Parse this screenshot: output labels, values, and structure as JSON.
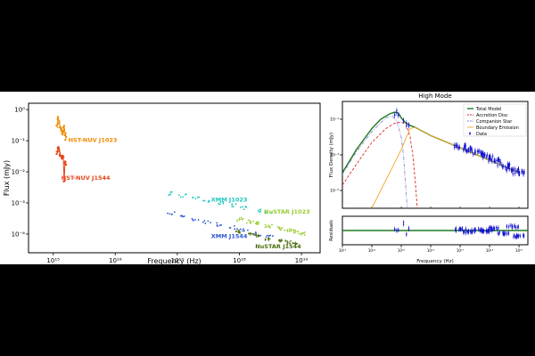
{
  "colors": {
    "hst_j1023": "#f08a00",
    "hst_j1544": "#e8441a",
    "xmm_j1023": "#18c6c0",
    "xmm_j1544": "#2a55d6",
    "nustar_j1023": "#9acd32",
    "nustar_j1544": "#4a6d10",
    "total_model": "#1f7a1f",
    "accretion_disc": "#e32626",
    "companion_star": "#8a8ad8",
    "boundary_emission": "#f5a623",
    "data": "#1010d0"
  },
  "chart_data": [
    {
      "type": "scatter",
      "xlabel": "Frequency (Hz)",
      "ylabel": "Flux (mJy)",
      "xscale": "log",
      "yscale": "log",
      "xlim": [
        400000000000000.0,
        2e+19
      ],
      "ylim": [
        2.5e-05,
        1.6
      ],
      "xticks": [
        {
          "value": 1000000000000000.0,
          "label": "10¹⁵"
        },
        {
          "value": 1e+16,
          "label": "10¹⁶"
        },
        {
          "value": 1e+17,
          "label": "10¹⁷"
        },
        {
          "value": 1e+18,
          "label": "10¹⁸"
        },
        {
          "value": 1e+19,
          "label": "10¹⁹"
        }
      ],
      "yticks": [
        {
          "value": 1,
          "label": "10⁰"
        },
        {
          "value": 0.1,
          "label": "10⁻¹"
        },
        {
          "value": 0.01,
          "label": "10⁻²"
        },
        {
          "value": 0.001,
          "label": "10⁻³"
        },
        {
          "value": 0.0001,
          "label": "10⁻⁴"
        }
      ],
      "series": [
        {
          "name": "HST-NUV J1023",
          "color_key": "hst_j1023",
          "x": [
            1150000000000000.0,
            1200000000000000.0,
            1250000000000000.0,
            1300000000000000.0,
            1350000000000000.0,
            1400000000000000.0,
            1450000000000000.0,
            1500000000000000.0,
            1550000000000000.0,
            1600000000000000.0
          ],
          "y": [
            0.3,
            0.55,
            0.4,
            0.25,
            0.22,
            0.18,
            0.2,
            0.3,
            0.16,
            0.12
          ]
        },
        {
          "name": "HST-NUV J1544",
          "color_key": "hst_j1544",
          "x": [
            1150000000000000.0,
            1200000000000000.0,
            1250000000000000.0,
            1300000000000000.0,
            1350000000000000.0,
            1400000000000000.0,
            1450000000000000.0,
            1500000000000000.0,
            1550000000000000.0,
            1600000000000000.0
          ],
          "y": [
            0.04,
            0.06,
            0.05,
            0.035,
            0.03,
            0.028,
            0.032,
            0.005,
            0.02,
            0.018
          ]
        },
        {
          "name": "XMM J1023",
          "color_key": "xmm_j1023",
          "x": [
            8e+16,
            1.2e+17,
            2e+17,
            3e+17,
            5e+17,
            8e+17,
            1.2e+18,
            2e+18,
            3e+18
          ],
          "y": [
            0.002,
            0.0017,
            0.0014,
            0.0012,
            0.001,
            0.00085,
            0.0007,
            0.00055,
            0.00045
          ]
        },
        {
          "name": "XMM J1544",
          "color_key": "xmm_j1544",
          "x": [
            8e+16,
            1.2e+17,
            2e+17,
            3e+17,
            5e+17,
            8e+17,
            1.2e+18,
            2e+18,
            3e+18
          ],
          "y": [
            0.00045,
            0.00037,
            0.0003,
            0.00025,
            0.0002,
            0.00016,
            0.00013,
            0.0001,
            8e-05
          ]
        },
        {
          "name": "NuSTAR J1023",
          "color_key": "nustar_j1023",
          "x": [
            1e+18,
            1.5e+18,
            2e+18,
            3e+18,
            4.5e+18,
            6e+18,
            8e+18,
            1e+19
          ],
          "y": [
            0.0003,
            0.00025,
            0.00022,
            0.00018,
            0.00015,
            0.00013,
            0.00012,
            0.0001
          ]
        },
        {
          "name": "NuSTAR J1544",
          "color_key": "nustar_j1544",
          "x": [
            1e+18,
            1.5e+18,
            2e+18,
            3e+18,
            4.5e+18,
            6e+18,
            8e+18
          ],
          "y": [
            0.00012,
            0.0001,
            9e-05,
            7e-05,
            6e-05,
            5.5e-05,
            5e-05
          ]
        }
      ],
      "annotations": [
        {
          "text": "HST-NUV J1023",
          "x": 1750000000000000.0,
          "y": 0.09,
          "color_key": "hst_j1023"
        },
        {
          "text": "HST-NUV J1544",
          "x": 1350000000000000.0,
          "y": 0.0055,
          "color_key": "hst_j1544"
        },
        {
          "text": "XMM J1023",
          "x": 3.5e+17,
          "y": 0.0011,
          "color_key": "xmm_j1023"
        },
        {
          "text": "NuSTAR J1023",
          "x": 2.5e+18,
          "y": 0.00045,
          "color_key": "nustar_j1023"
        },
        {
          "text": "XMM J1544",
          "x": 3.5e+17,
          "y": 7.5e-05,
          "color_key": "xmm_j1544"
        },
        {
          "text": "NuSTAR J1544",
          "x": 1.8e+18,
          "y": 3.5e-05,
          "color_key": "nustar_j1544"
        }
      ]
    },
    {
      "type": "line",
      "title": "High Mode",
      "ylabel": "Flux Density (mJy)",
      "xscale": "log",
      "yscale": "log",
      "xlim": [
        10000000000000.0,
        2e+19
      ],
      "ylim": [
        1e-06,
        1
      ],
      "xticks": [
        {
          "value": 10000000000000.0,
          "label": "10¹³"
        },
        {
          "value": 100000000000000.0,
          "label": "10¹⁴"
        },
        {
          "value": 1000000000000000.0,
          "label": "10¹⁵"
        },
        {
          "value": 1e+16,
          "label": "10¹⁶"
        },
        {
          "value": 1e+17,
          "label": "10¹⁷"
        },
        {
          "value": 1e+18,
          "label": "10¹⁸"
        },
        {
          "value": 1e+19,
          "label": "10¹⁹"
        }
      ],
      "yticks": [
        {
          "value": 0.1,
          "label": "10⁻¹"
        },
        {
          "value": 0.001,
          "label": "10⁻³"
        },
        {
          "value": 1e-05,
          "label": "10⁻⁵"
        }
      ],
      "legend_position": "top-right",
      "series": [
        {
          "name": "Total Model",
          "color_key": "total_model",
          "style": "solid",
          "x": [
            10000000000000.0,
            30000000000000.0,
            100000000000000.0,
            200000000000000.0,
            400000000000000.0,
            600000000000000.0,
            800000000000000.0,
            1000000000000000.0,
            1300000000000000.0,
            2000000000000000.0,
            3000000000000000.0,
            1e+16,
            1e+17,
            1e+18,
            1e+19
          ],
          "y": [
            0.0001,
            0.002,
            0.03,
            0.1,
            0.2,
            0.25,
            0.22,
            0.12,
            0.07,
            0.045,
            0.035,
            0.012,
            0.0025,
            0.0005,
            0.0001
          ]
        },
        {
          "name": "Accretion Disc",
          "color_key": "accretion_disc",
          "style": "dashed",
          "x": [
            10000000000000.0,
            30000000000000.0,
            100000000000000.0,
            300000000000000.0,
            600000000000000.0,
            1000000000000000.0,
            1500000000000000.0,
            2000000000000000.0,
            2500000000000000.0,
            3000000000000000.0,
            3500000000000000.0
          ],
          "y": [
            2e-05,
            0.0003,
            0.005,
            0.03,
            0.06,
            0.07,
            0.05,
            0.01,
            0.0008,
            3e-05,
            1e-06
          ]
        },
        {
          "name": "Companion Star",
          "color_key": "companion_star",
          "style": "dashdot",
          "x": [
            10000000000000.0,
            30000000000000.0,
            100000000000000.0,
            300000000000000.0,
            500000000000000.0,
            700000000000000.0,
            1000000000000000.0,
            1200000000000000.0,
            1400000000000000.0,
            1600000000000000.0
          ],
          "y": [
            8e-05,
            0.0015,
            0.02,
            0.12,
            0.15,
            0.08,
            0.01,
            0.0008,
            2e-05,
            1e-06
          ]
        },
        {
          "name": "Boundary Emission",
          "color_key": "boundary_emission",
          "style": "solid",
          "x": [
            100000000000000.0,
            200000000000000.0,
            500000000000000.0,
            1000000000000000.0,
            1500000000000000.0,
            2000000000000000.0,
            3000000000000000.0,
            1e+16,
            1e+17,
            1e+18,
            1e+19
          ],
          "y": [
            1e-06,
            1e-05,
            0.0002,
            0.002,
            0.01,
            0.03,
            0.035,
            0.012,
            0.0025,
            0.0005,
            0.0001
          ]
        },
        {
          "name": "Data",
          "color_key": "data",
          "style": "points",
          "x": [
            600000000000000.0,
            700000000000000.0,
            800000000000000.0,
            1200000000000000.0,
            1500000000000000.0,
            1800000000000000.0,
            1e+17,
            2e+17,
            4e+17,
            8e+17,
            1.5e+18,
            3e+18,
            6e+18,
            1e+19
          ],
          "y": [
            0.2,
            0.28,
            0.2,
            0.08,
            0.05,
            0.04,
            0.003,
            0.002,
            0.0013,
            0.0008,
            0.0005,
            0.00025,
            0.00015,
            0.0001
          ]
        }
      ]
    },
    {
      "type": "scatter",
      "xlabel": "Frequency (Hz)",
      "ylabel": "Residuals",
      "xscale": "log",
      "xlim": [
        10000000000000.0,
        2e+19
      ],
      "ylim": [
        -3,
        3
      ],
      "xticks": [
        {
          "value": 10000000000000.0,
          "label": "10¹³"
        },
        {
          "value": 100000000000000.0,
          "label": "10¹⁴"
        },
        {
          "value": 1000000000000000.0,
          "label": "10¹⁵"
        },
        {
          "value": 1e+16,
          "label": "10¹⁶"
        },
        {
          "value": 1e+17,
          "label": "10¹⁷"
        },
        {
          "value": 1e+18,
          "label": "10¹⁸"
        },
        {
          "value": 1e+19,
          "label": "10¹⁹"
        }
      ],
      "reference_line": 0,
      "points": {
        "x": [
          600000000000000.0,
          700000000000000.0,
          800000000000000.0,
          1200000000000000.0,
          1500000000000000.0,
          1800000000000000.0,
          1e+17,
          2e+17,
          4e+17,
          8e+17,
          1.5e+18,
          3e+18,
          6e+18,
          1e+19
        ],
        "y": [
          0.3,
          -0.2,
          0.1,
          1.5,
          -0.8,
          0.4,
          0.2,
          -0.3,
          0.1,
          -0.1,
          0.4,
          -0.5,
          0.8,
          -1.2
        ]
      }
    }
  ]
}
